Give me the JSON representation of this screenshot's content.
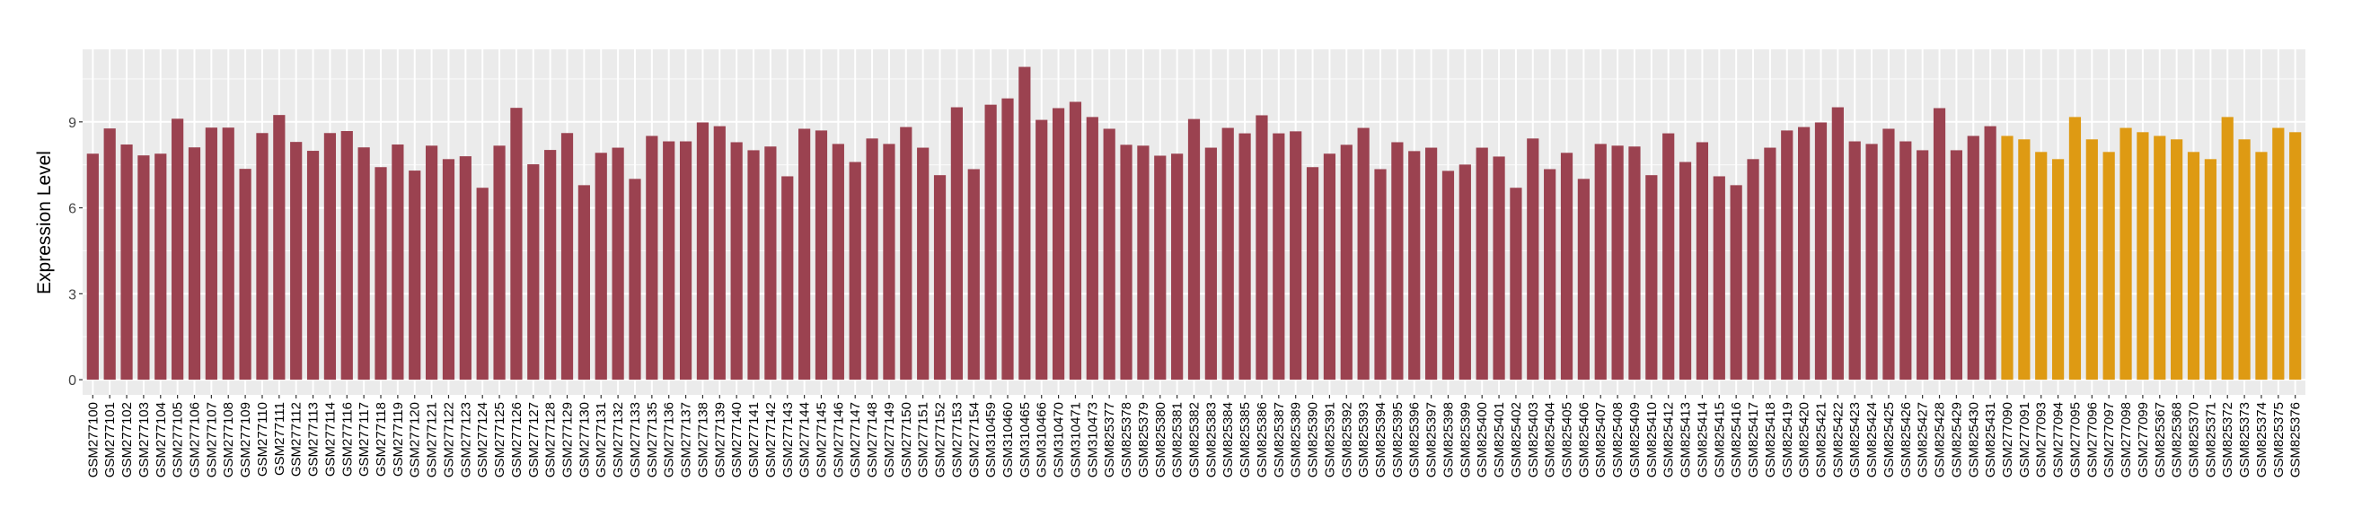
{
  "chart_data": {
    "type": "bar",
    "title": "",
    "xlabel": "",
    "ylabel": "Expression Level",
    "ylim": [
      0,
      11.5
    ],
    "yticks": [
      0,
      3,
      6,
      9
    ],
    "grid": true,
    "legend": "none",
    "colors": {
      "group1": "#9b4250",
      "group2": "#de9a13",
      "panel": "#ebebeb",
      "grid": "#ffffff"
    },
    "categories": [
      "GSM277100",
      "GSM277101",
      "GSM277102",
      "GSM277103",
      "GSM277104",
      "GSM277105",
      "GSM277106",
      "GSM277107",
      "GSM277108",
      "GSM277109",
      "GSM277110",
      "GSM277111",
      "GSM277112",
      "GSM277113",
      "GSM277114",
      "GSM277116",
      "GSM277117",
      "GSM277118",
      "GSM277119",
      "GSM277120",
      "GSM277121",
      "GSM277122",
      "GSM277123",
      "GSM277124",
      "GSM277125",
      "GSM277126",
      "GSM277127",
      "GSM277128",
      "GSM277129",
      "GSM277130",
      "GSM277131",
      "GSM277132",
      "GSM277133",
      "GSM277135",
      "GSM277136",
      "GSM277137",
      "GSM277138",
      "GSM277139",
      "GSM277140",
      "GSM277141",
      "GSM277142",
      "GSM277143",
      "GSM277144",
      "GSM277145",
      "GSM277146",
      "GSM277147",
      "GSM277148",
      "GSM277149",
      "GSM277150",
      "GSM277151",
      "GSM277152",
      "GSM277153",
      "GSM277154",
      "GSM310459",
      "GSM310460",
      "GSM310465",
      "GSM310466",
      "GSM310470",
      "GSM310471",
      "GSM310473",
      "GSM825377",
      "GSM825378",
      "GSM825379",
      "GSM825380",
      "GSM825381",
      "GSM825382",
      "GSM825383",
      "GSM825384",
      "GSM825385",
      "GSM825386",
      "GSM825387",
      "GSM825389",
      "GSM825390",
      "GSM825391",
      "GSM825392",
      "GSM825393",
      "GSM825394",
      "GSM825395",
      "GSM825396",
      "GSM825397",
      "GSM825398",
      "GSM825399",
      "GSM825400",
      "GSM825401",
      "GSM825402",
      "GSM825403",
      "GSM825404",
      "GSM825405",
      "GSM825406",
      "GSM825407",
      "GSM825408",
      "GSM825409",
      "GSM825410",
      "GSM825412",
      "GSM825413",
      "GSM825414",
      "GSM825415",
      "GSM825416",
      "GSM825417",
      "GSM825418",
      "GSM825419",
      "GSM825420",
      "GSM825421",
      "GSM825422",
      "GSM825423",
      "GSM825424",
      "GSM825425",
      "GSM825426",
      "GSM825427",
      "GSM825428",
      "GSM825429",
      "GSM825430",
      "GSM825431",
      "GSM277090",
      "GSM277091",
      "GSM277093",
      "GSM277094",
      "GSM277095",
      "GSM277096",
      "GSM277097",
      "GSM277098",
      "GSM277099",
      "GSM825367",
      "GSM825368",
      "GSM825370",
      "GSM825371",
      "GSM825372",
      "GSM825373",
      "GSM825374",
      "GSM825375",
      "GSM825376"
    ],
    "values": [
      7.89,
      8.77,
      8.21,
      7.83,
      7.89,
      9.11,
      8.11,
      8.8,
      8.8,
      7.36,
      8.61,
      9.24,
      8.3,
      7.99,
      8.61,
      8.68,
      8.11,
      7.42,
      8.21,
      7.3,
      8.17,
      7.7,
      7.8,
      6.7,
      8.17,
      9.49,
      7.52,
      8.02,
      8.61,
      6.79,
      7.92,
      8.1,
      7.01,
      8.51,
      8.32,
      8.32,
      8.98,
      8.85,
      8.29,
      8.01,
      8.14,
      7.1,
      8.76,
      8.7,
      8.23,
      7.6,
      8.42,
      8.23,
      8.82,
      8.1,
      7.14,
      9.51,
      7.35,
      9.6,
      9.82,
      10.92,
      9.07,
      9.48,
      9.7,
      9.17,
      8.76,
      8.2,
      8.17,
      7.82,
      7.89,
      9.1,
      8.1,
      8.79,
      8.6,
      9.23,
      8.6,
      8.67,
      7.42,
      7.89,
      8.2,
      8.79,
      7.35,
      8.29,
      7.98,
      8.1,
      7.29,
      7.51,
      8.1,
      7.79,
      6.7,
      8.42,
      7.35,
      7.92,
      7.01,
      8.23,
      8.17,
      8.14,
      7.14,
      8.6,
      7.6,
      8.29,
      7.1,
      6.79,
      7.7,
      8.1,
      8.7,
      8.82,
      8.98,
      9.51,
      8.32,
      8.23,
      8.76,
      8.32,
      8.01,
      9.48,
      8.01,
      8.51,
      8.85,
      8.51,
      8.39,
      7.95,
      7.7,
      9.17,
      8.39,
      7.95,
      8.79,
      8.64,
      8.51,
      8.39,
      7.95,
      7.7,
      9.17,
      8.39,
      7.95,
      8.79,
      8.64
    ],
    "groups": [
      113,
      18
    ]
  }
}
